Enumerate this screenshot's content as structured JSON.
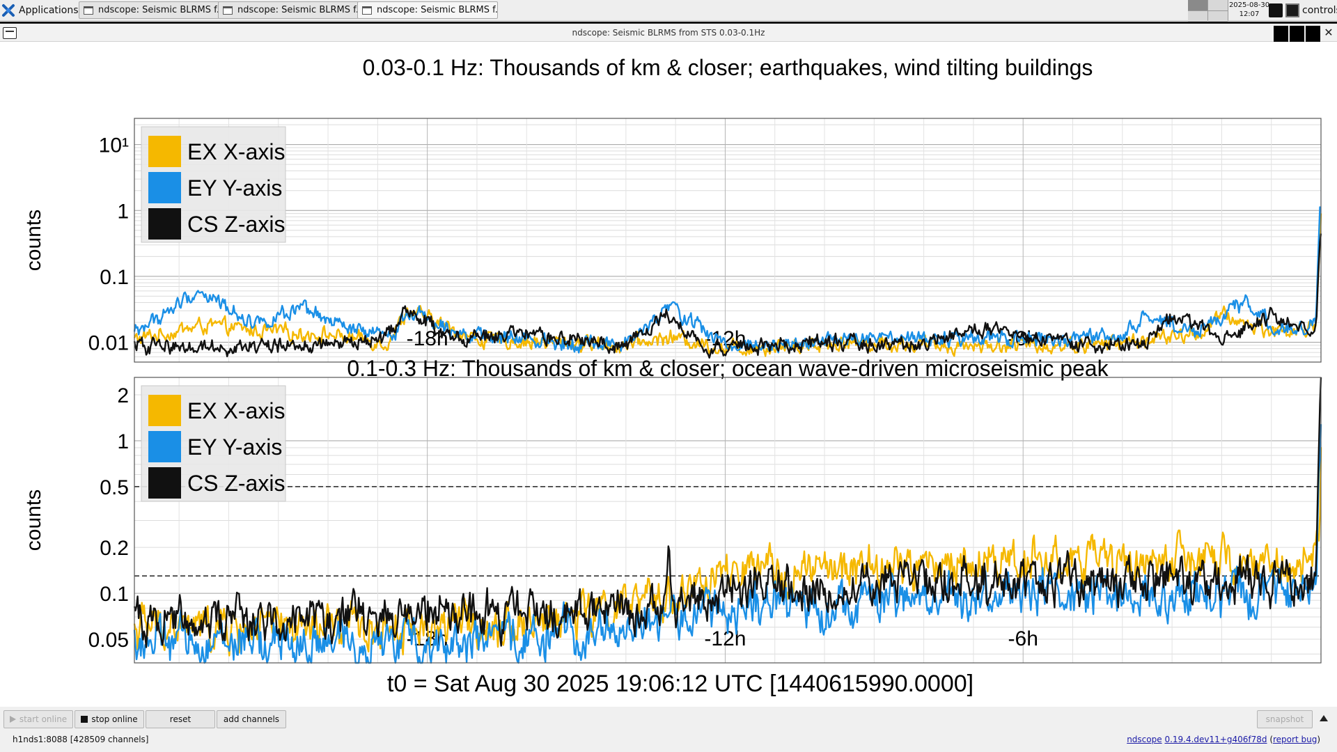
{
  "taskbar": {
    "apps_label": "Applications",
    "tasks": [
      {
        "label": "ndscope: Seismic BLRMS f..."
      },
      {
        "label": "ndscope: Seismic BLRMS f..."
      },
      {
        "label": "ndscope: Seismic BLRMS f..."
      }
    ],
    "clock_date": "2025-08-30",
    "clock_time": "12:07",
    "user": "controls"
  },
  "window": {
    "title": "ndscope: Seismic BLRMS from STS 0.03-0.1Hz"
  },
  "colors": {
    "ex": "#f5b800",
    "ey": "#1a8fe6",
    "cs": "#111111",
    "grid": "#c8c8c8",
    "legend_bg": "#e8e8e8"
  },
  "plots": [
    {
      "title": "0.03-0.1 Hz: Thousands of km & closer; earthquakes, wind tilting buildings",
      "ylabel": "counts",
      "yticks": [
        "10¹",
        "1",
        "0.1",
        "0.01"
      ],
      "xticks": [
        "-18h",
        "-12h",
        "-6h"
      ],
      "legend": [
        {
          "label": "EX X-axis",
          "color": "ex"
        },
        {
          "label": "EY Y-axis",
          "color": "ey"
        },
        {
          "label": "CS Z-axis",
          "color": "cs"
        }
      ]
    },
    {
      "title": "0.1-0.3 Hz: Thousands of km & closer; ocean wave-driven microseismic peak",
      "ylabel": "counts",
      "yticks": [
        "2",
        "1",
        "0.5",
        "0.2",
        "0.1",
        "0.05"
      ],
      "xticks": [
        "-18h",
        "-12h",
        "-6h"
      ],
      "legend": [
        {
          "label": "EX X-axis",
          "color": "ex"
        },
        {
          "label": "EY Y-axis",
          "color": "ey"
        },
        {
          "label": "CS Z-axis",
          "color": "cs"
        }
      ]
    }
  ],
  "t0_label": "t0 = Sat Aug 30 2025 19:06:12 UTC [1440615990.0000]",
  "controls": {
    "start_online": "start online",
    "stop_online": "stop online",
    "reset": "reset",
    "add_channels": "add channels",
    "snapshot": "snapshot"
  },
  "status": {
    "server": "h1nds1:8088  [428509 channels]",
    "app_name": "ndscope",
    "version": "0.19.4.dev11+g406f78d",
    "report_bug": "report bug"
  },
  "chart_data": [
    {
      "type": "line",
      "title": "0.03-0.1 Hz: Thousands of km & closer; earthquakes, wind tilting buildings",
      "xlabel": "",
      "ylabel": "counts",
      "y_scale": "log",
      "xlim_hours": [
        -23.9,
        0
      ],
      "ylim": [
        0.005,
        25
      ],
      "x_tick_labels": [
        "-18h",
        "-12h",
        "-6h"
      ],
      "y_tick_labels": [
        "10¹",
        "1",
        "0.1",
        "0.01"
      ],
      "grid": true,
      "legend_position": "top-left",
      "series": [
        {
          "name": "EX X-axis",
          "x_hours": [
            -23.9,
            -22.5,
            -21.5,
            -20,
            -18.8,
            -18.4,
            -17,
            -14,
            -13.1,
            -12,
            -9.5,
            -8,
            -5,
            -4,
            -2.5,
            -2,
            -1,
            -0.3,
            -0.1,
            -0.02,
            0
          ],
          "values": [
            0.011,
            0.018,
            0.015,
            0.013,
            0.01,
            0.03,
            0.011,
            0.009,
            0.012,
            0.008,
            0.01,
            0.009,
            0.009,
            0.01,
            0.013,
            0.025,
            0.015,
            0.015,
            0.02,
            0.5,
            0.9
          ]
        },
        {
          "name": "EY Y-axis",
          "x_hours": [
            -23.9,
            -23.2,
            -22.6,
            -21.5,
            -20.5,
            -19.5,
            -18.8,
            -18.3,
            -17,
            -14,
            -13.1,
            -12,
            -9.5,
            -8,
            -5,
            -4,
            -3.5,
            -2.5,
            -1.5,
            -1,
            -0.3,
            -0.1,
            -0.02,
            0
          ],
          "values": [
            0.014,
            0.03,
            0.06,
            0.02,
            0.03,
            0.015,
            0.012,
            0.03,
            0.012,
            0.009,
            0.035,
            0.009,
            0.011,
            0.011,
            0.011,
            0.012,
            0.025,
            0.015,
            0.04,
            0.018,
            0.016,
            0.02,
            0.9,
            1.0
          ]
        },
        {
          "name": "CS Z-axis",
          "x_hours": [
            -23.9,
            -22,
            -20,
            -18.9,
            -18.4,
            -17.5,
            -16.3,
            -14,
            -13.1,
            -12.5,
            -12,
            -10,
            -8,
            -7,
            -5,
            -3.5,
            -3,
            -2,
            -1,
            -0.3,
            -0.1,
            -0.02,
            0
          ],
          "values": [
            0.009,
            0.0085,
            0.009,
            0.011,
            0.032,
            0.011,
            0.013,
            0.009,
            0.028,
            0.009,
            0.008,
            0.01,
            0.009,
            0.016,
            0.009,
            0.01,
            0.025,
            0.012,
            0.025,
            0.015,
            0.015,
            0.35,
            0.5
          ]
        }
      ]
    },
    {
      "type": "line",
      "title": "0.1-0.3 Hz: Thousands of km & closer; ocean wave-driven microseismic peak",
      "xlabel": "",
      "ylabel": "counts",
      "y_scale": "log",
      "xlim_hours": [
        -23.9,
        0
      ],
      "ylim": [
        0.035,
        2.6
      ],
      "x_tick_labels": [
        "-18h",
        "-12h",
        "-6h"
      ],
      "y_tick_labels": [
        "2",
        "1",
        "0.5",
        "0.2",
        "0.1",
        "0.05"
      ],
      "grid": true,
      "legend_position": "top-left",
      "reference_lines": [
        0.5,
        0.13
      ],
      "series": [
        {
          "name": "EX X-axis",
          "x_hours": [
            -23.9,
            -20,
            -16,
            -14,
            -13.1,
            -12,
            -10,
            -8,
            -6,
            -4,
            -2,
            -0.5,
            -0.1,
            -0.02,
            0
          ],
          "values": [
            0.06,
            0.058,
            0.065,
            0.08,
            0.095,
            0.13,
            0.14,
            0.15,
            0.17,
            0.16,
            0.16,
            0.15,
            0.15,
            0.4,
            1.0
          ]
        },
        {
          "name": "EY Y-axis",
          "x_hours": [
            -23.9,
            -20,
            -16,
            -14,
            -12,
            -10,
            -8,
            -6,
            -4,
            -2,
            -0.5,
            -0.1,
            -0.02,
            0
          ],
          "values": [
            0.048,
            0.046,
            0.05,
            0.06,
            0.08,
            0.085,
            0.09,
            0.1,
            0.095,
            0.1,
            0.095,
            0.1,
            0.8,
            1.5
          ]
        },
        {
          "name": "CS Z-axis",
          "x_hours": [
            -23.9,
            -20,
            -16,
            -14,
            -13.25,
            -13.15,
            -13.05,
            -12,
            -10,
            -8,
            -6,
            -4,
            -2,
            -0.5,
            -0.1,
            -0.02,
            0
          ],
          "values": [
            0.07,
            0.07,
            0.072,
            0.08,
            0.08,
            0.26,
            0.085,
            0.1,
            0.11,
            0.12,
            0.12,
            0.12,
            0.12,
            0.12,
            0.12,
            1.5,
            2.6
          ]
        }
      ]
    }
  ]
}
